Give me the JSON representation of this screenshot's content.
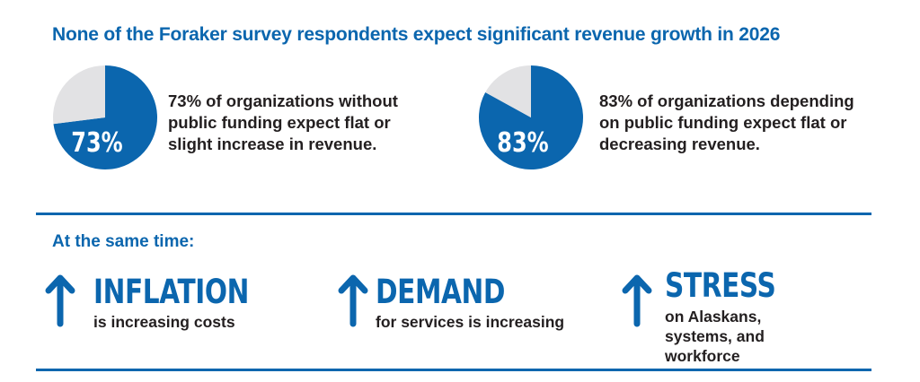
{
  "title": "None of the Foraker survey respondents expect significant revenue growth in 2026",
  "colors": {
    "accent": "#0b66ae",
    "remainder": "#e2e2e4",
    "text": "#231f20"
  },
  "chart_data": [
    {
      "type": "pie",
      "values": [
        73,
        27
      ],
      "label": "73%",
      "description": "73% of organizations without public funding expect flat or slight increase in revenue."
    },
    {
      "type": "pie",
      "values": [
        83,
        17
      ],
      "label": "83%",
      "description": "83% of organizations depending on public funding expect flat or decreasing revenue."
    }
  ],
  "same_time": "At the same time:",
  "factors": [
    {
      "icon": "arrow-up-icon",
      "headline": "INFLATION",
      "detail": "is increasing costs"
    },
    {
      "icon": "arrow-up-icon",
      "headline": "DEMAND",
      "detail": "for services is increasing"
    },
    {
      "icon": "arrow-up-icon",
      "headline": "STRESS",
      "detail": "on Alaskans, systems, and workforce"
    }
  ]
}
